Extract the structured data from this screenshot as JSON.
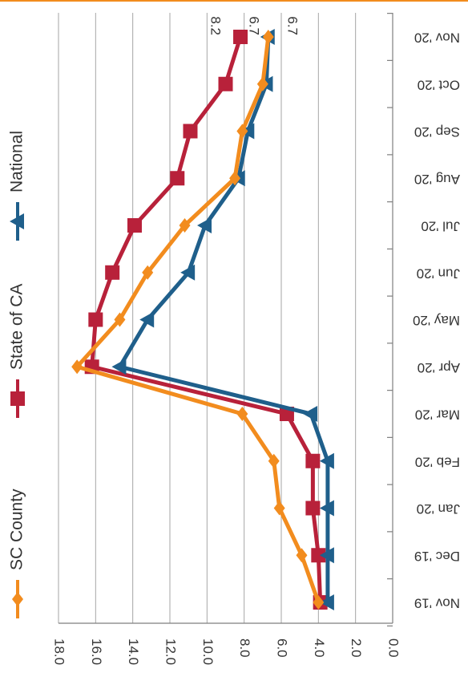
{
  "chart_data": {
    "type": "line",
    "orientation": "rotated-180",
    "categories": [
      "Nov '19",
      "Dec '19",
      "Jan '20",
      "Feb '20",
      "Mar '20",
      "Apr '20",
      "May '20",
      "Jun '20",
      "Jul '20",
      "Aug '20",
      "Sep '20",
      "Oct '20",
      "Nov '20"
    ],
    "y_ticks": [
      "0.0",
      "2.0",
      "4.0",
      "6.0",
      "8.0",
      "10.0",
      "12.0",
      "14.0",
      "16.0",
      "18.0"
    ],
    "ylim": [
      0,
      18
    ],
    "grid": true,
    "legend_placement": "right",
    "series": [
      {
        "name": "SC County",
        "color": "#f28c1e",
        "marker": "diamond",
        "values": [
          4.0,
          4.9,
          6.1,
          6.4,
          8.1,
          17.0,
          14.7,
          13.2,
          11.2,
          8.5,
          8.1,
          7.0,
          6.7
        ]
      },
      {
        "name": "State of CA",
        "color": "#b8213a",
        "marker": "square",
        "values": [
          3.9,
          4.0,
          4.3,
          4.3,
          5.7,
          16.2,
          16.0,
          15.1,
          13.9,
          11.6,
          10.9,
          9.0,
          8.2
        ]
      },
      {
        "name": "National",
        "color": "#1f5f8b",
        "marker": "triangle",
        "values": [
          3.5,
          3.5,
          3.5,
          3.5,
          4.4,
          14.7,
          13.2,
          11.0,
          10.1,
          8.3,
          7.8,
          6.8,
          6.7
        ]
      }
    ],
    "data_labels": [
      {
        "series": 1,
        "index": 12,
        "text": "8.2"
      },
      {
        "series": 0,
        "index": 12,
        "text": "6.7"
      },
      {
        "series": 2,
        "index": 12,
        "text": "6.7"
      }
    ]
  }
}
